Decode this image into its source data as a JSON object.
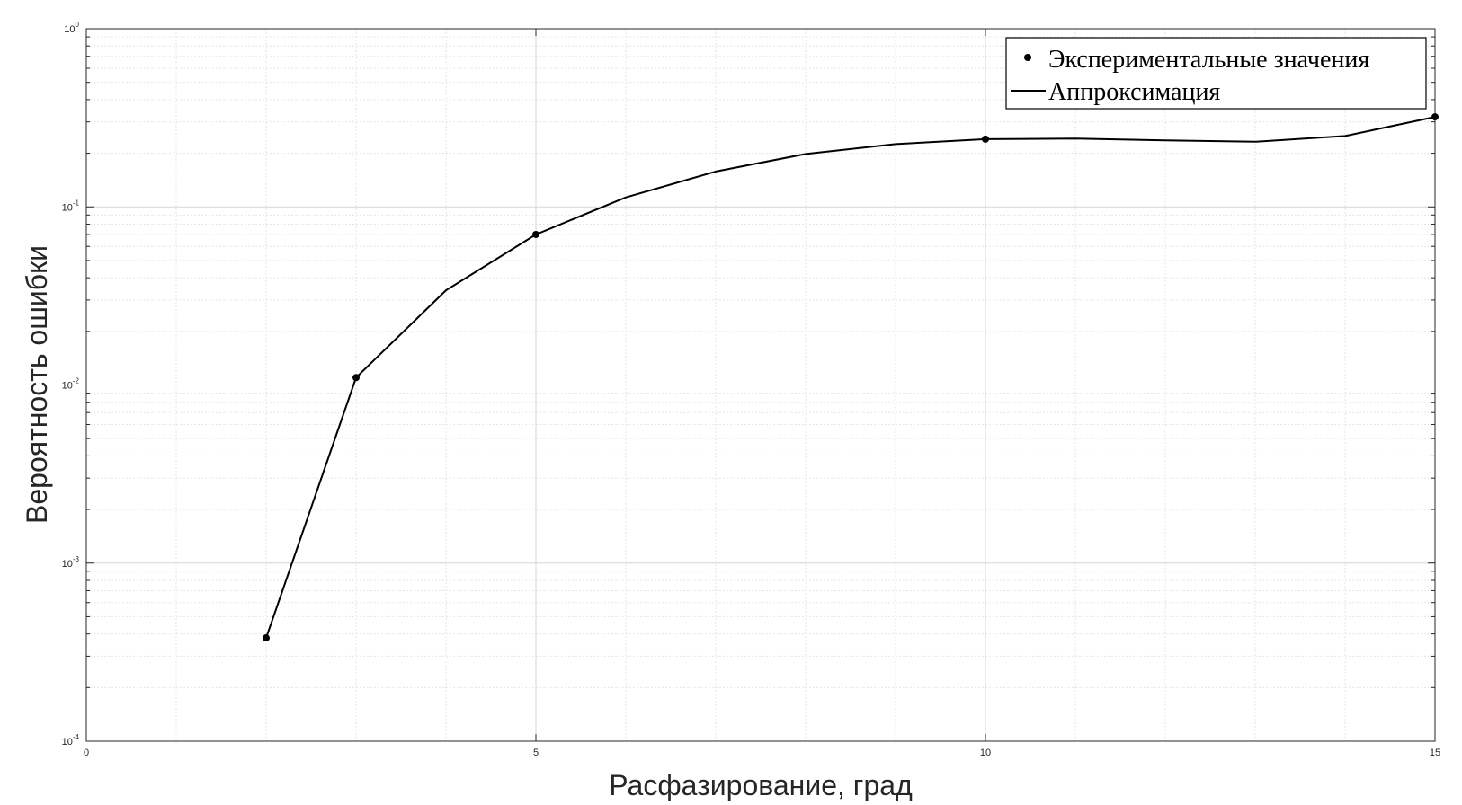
{
  "chart_data": {
    "type": "line",
    "xlabel": "Расфазирование, град",
    "ylabel": "Вероятность ошибки",
    "xlim": [
      0,
      15
    ],
    "ylim": [
      0.0001,
      1
    ],
    "yscale": "log",
    "grid": true,
    "minor_grid": true,
    "legend_position": "top-right",
    "x_ticks": [
      0,
      5,
      10,
      15
    ],
    "y_ticks": [
      {
        "base": "10",
        "exp": "-4",
        "value": 0.0001
      },
      {
        "base": "10",
        "exp": "-3",
        "value": 0.001
      },
      {
        "base": "10",
        "exp": "-2",
        "value": 0.01
      },
      {
        "base": "10",
        "exp": "-1",
        "value": 0.1
      },
      {
        "base": "10",
        "exp": "0",
        "value": 1
      }
    ],
    "series": [
      {
        "name": "Экспериментальные значения",
        "style": "markers",
        "color": "#000000",
        "points": [
          {
            "x": 2,
            "y": 0.00038
          },
          {
            "x": 3,
            "y": 0.011
          },
          {
            "x": 5,
            "y": 0.07
          },
          {
            "x": 10,
            "y": 0.24
          },
          {
            "x": 15,
            "y": 0.32
          }
        ]
      },
      {
        "name": "Аппроксимация",
        "style": "line",
        "color": "#000000",
        "points": [
          {
            "x": 2,
            "y": 0.00038
          },
          {
            "x": 3,
            "y": 0.011
          },
          {
            "x": 4,
            "y": 0.034
          },
          {
            "x": 5,
            "y": 0.07
          },
          {
            "x": 6,
            "y": 0.113
          },
          {
            "x": 7,
            "y": 0.158
          },
          {
            "x": 8,
            "y": 0.198
          },
          {
            "x": 9,
            "y": 0.225
          },
          {
            "x": 10,
            "y": 0.24
          },
          {
            "x": 11,
            "y": 0.242
          },
          {
            "x": 12,
            "y": 0.236
          },
          {
            "x": 13,
            "y": 0.232
          },
          {
            "x": 14,
            "y": 0.25
          },
          {
            "x": 15,
            "y": 0.32
          }
        ]
      }
    ]
  }
}
